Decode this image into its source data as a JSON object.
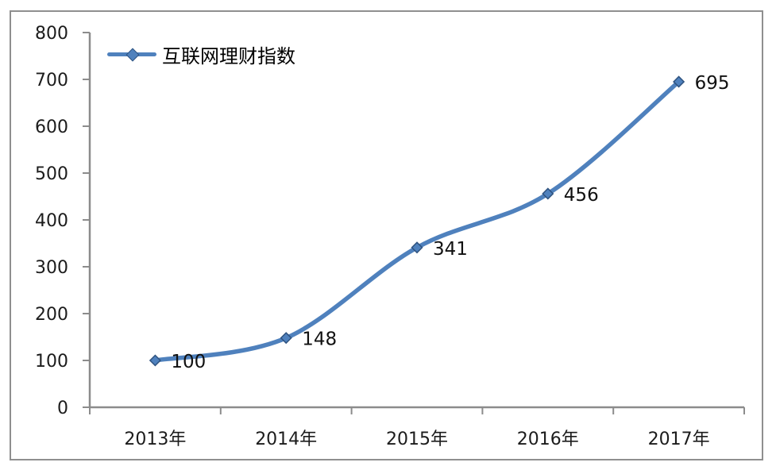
{
  "window": {
    "background": "#ffffff",
    "frame_border_color": "#8f8f8f"
  },
  "chart_data": {
    "type": "line",
    "title": "",
    "xlabel": "",
    "ylabel": "",
    "legend": {
      "label": "互联网理财指数",
      "position": "top-left"
    },
    "categories": [
      "2013年",
      "2014年",
      "2015年",
      "2016年",
      "2017年"
    ],
    "series": [
      {
        "name": "互联网理财指数",
        "values": [
          100,
          148,
          341,
          456,
          695
        ]
      }
    ],
    "data_labels": [
      "100",
      "148",
      "341",
      "456",
      "695"
    ],
    "yticks": [
      0,
      100,
      200,
      300,
      400,
      500,
      600,
      700,
      800
    ],
    "ylim": [
      0,
      800
    ],
    "grid": false,
    "smoothed_line": true,
    "colors": {
      "line": "#4f81bd",
      "marker_fill": "#4f81bd",
      "marker_border": "#2f5380",
      "axis": "#8c8c8c",
      "text": "#1c1c1c"
    }
  }
}
